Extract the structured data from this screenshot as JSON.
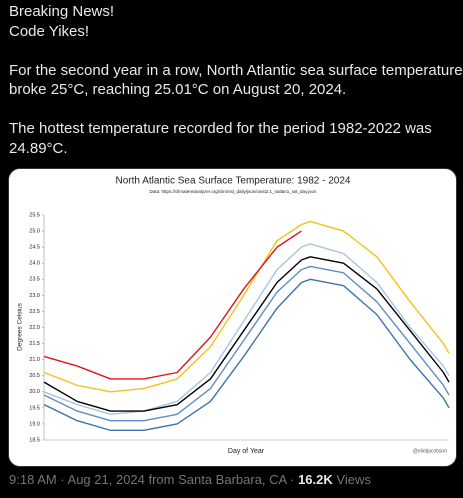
{
  "tweet": {
    "paragraphs": [
      [
        "Breaking News!",
        "Code Yikes!"
      ],
      [
        "For the second year in a row, North Atlantic sea surface temperatures",
        "broke 25°C, reaching 25.01°C on August 20, 2024."
      ],
      [
        "The hottest temperature recorded for the period 1982-2022 was",
        "24.89°C."
      ]
    ]
  },
  "chart_data": {
    "type": "line",
    "title": "North Atlantic Sea Surface Temperature: 1982 - 2024",
    "subtitle": "Data: https://climatereanalyzer.org/clim/sst_daily/json/oisst2.1_natlan1_sst_day.json",
    "x_label": "Day of Year",
    "y_label": "Degrees Celsius",
    "watermark": "@eliotjacobson",
    "x": [
      1,
      31,
      61,
      91,
      121,
      151,
      181,
      211,
      233,
      241,
      271,
      301,
      331,
      361,
      366
    ],
    "xlim": [
      1,
      366
    ],
    "ylim": [
      18.5,
      25.5
    ],
    "yticks": [
      18.5,
      {
        "value": 19,
        "label": "19.0"
      },
      19.5,
      {
        "value": 20,
        "label": "20.0"
      },
      20.5,
      {
        "value": 21,
        "label": "21.0"
      },
      21.5,
      {
        "value": 22,
        "label": "22.0"
      },
      22.5,
      {
        "value": 23,
        "label": "23.0"
      },
      23.5,
      {
        "value": 24,
        "label": "24.0"
      },
      24.5,
      {
        "value": 25,
        "label": "25.0"
      },
      25.5
    ],
    "grid": false,
    "series": [
      {
        "color": "#a9c3e3",
        "values": [
          20.0,
          19.6,
          19.3,
          19.4,
          19.7,
          20.6,
          22.2,
          23.8,
          24.5,
          24.6,
          24.3,
          23.4,
          22.0,
          20.8,
          20.5
        ]
      },
      {
        "color": "#3d73ad",
        "values": [
          19.6,
          19.1,
          18.8,
          18.8,
          19.0,
          19.7,
          21.1,
          22.6,
          23.4,
          23.5,
          23.3,
          22.4,
          21.0,
          19.8,
          19.5
        ]
      },
      {
        "color": "#5b8fc7",
        "values": [
          19.9,
          19.4,
          19.1,
          19.1,
          19.3,
          20.1,
          21.6,
          23.1,
          23.8,
          23.9,
          23.7,
          22.8,
          21.5,
          20.2,
          19.9
        ]
      },
      {
        "color": "#000000",
        "values": [
          20.3,
          19.7,
          19.4,
          19.4,
          19.6,
          20.4,
          21.9,
          23.4,
          24.1,
          24.2,
          24.0,
          23.2,
          21.9,
          20.6,
          20.3
        ]
      },
      {
        "color": "#f0c419",
        "values": [
          20.6,
          20.2,
          20.0,
          20.1,
          20.4,
          21.4,
          23.0,
          24.7,
          25.2,
          25.3,
          25.0,
          24.2,
          22.8,
          21.5,
          21.2
        ]
      },
      {
        "color": "#e0141e",
        "values": [
          21.1,
          20.8,
          20.4,
          20.4,
          20.6,
          21.7,
          23.2,
          24.5,
          25.0,
          null,
          null,
          null,
          null,
          null,
          null
        ]
      }
    ]
  },
  "footer": {
    "meta": "9:18 AM · Aug 21, 2024 from Santa Barbara, CA ·",
    "views": "16.2K",
    "views_label": "Views"
  }
}
